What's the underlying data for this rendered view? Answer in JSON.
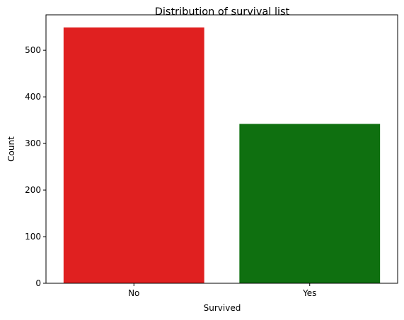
{
  "chart_data": {
    "type": "bar",
    "title": "Distribution of survival list",
    "xlabel": "Survived",
    "ylabel": "Count",
    "categories": [
      "No",
      "Yes"
    ],
    "values": [
      549,
      342
    ],
    "colors": [
      "#e02020",
      "#0f7010"
    ],
    "ylim": [
      0,
      576
    ],
    "yticks": [
      0,
      100,
      200,
      300,
      400,
      500
    ],
    "grid": false,
    "legend": "none"
  }
}
